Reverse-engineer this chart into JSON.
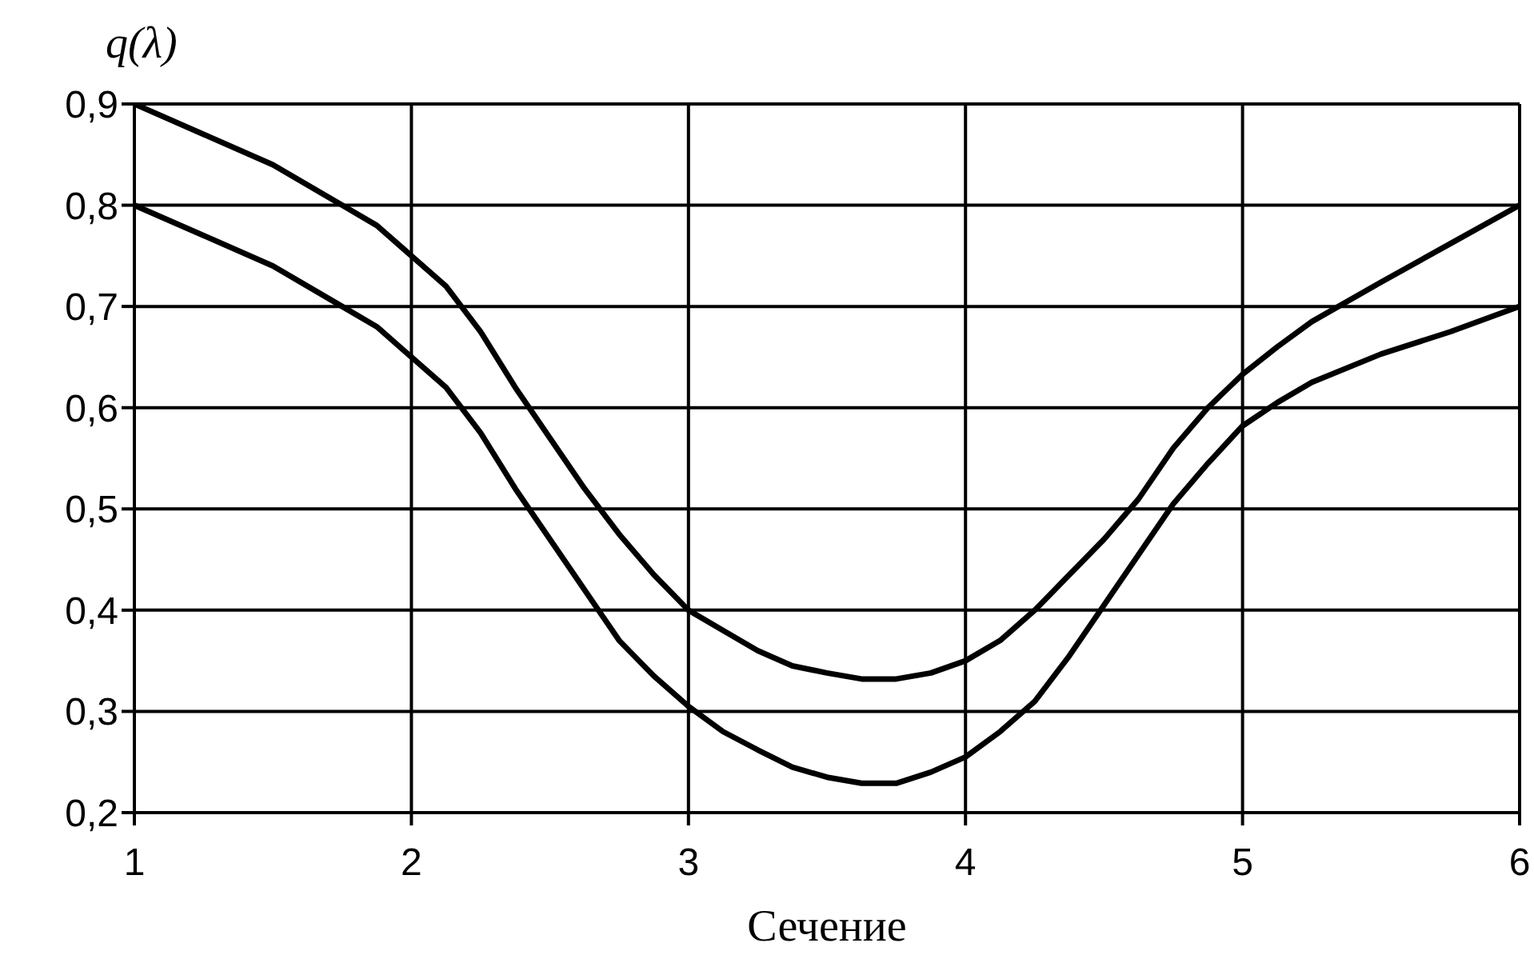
{
  "chart_data": {
    "type": "line",
    "xlabel": "Сечение",
    "ylabel": "q(λ)",
    "xlim": [
      1,
      6
    ],
    "xticks": [
      1,
      2,
      3,
      4,
      5,
      6
    ],
    "ylim": [
      0.2,
      0.9
    ],
    "yticks": [
      {
        "value": 0.2,
        "label": "0,2"
      },
      {
        "value": 0.3,
        "label": "0,3"
      },
      {
        "value": 0.4,
        "label": "0,4"
      },
      {
        "value": 0.5,
        "label": "0,5"
      },
      {
        "value": 0.6,
        "label": "0,6"
      },
      {
        "value": 0.7,
        "label": "0,7"
      },
      {
        "value": 0.8,
        "label": "0,8"
      },
      {
        "value": 0.9,
        "label": "0,9"
      }
    ],
    "grid": true,
    "marker": "none",
    "line_style": "solid",
    "x": [
      1,
      1.25,
      1.5,
      1.75,
      1.875,
      2,
      2.125,
      2.25,
      2.375,
      2.5,
      2.625,
      2.75,
      2.875,
      3,
      3.125,
      3.25,
      3.375,
      3.5,
      3.625,
      3.75,
      3.875,
      4,
      4.125,
      4.25,
      4.375,
      4.5,
      4.625,
      4.75,
      4.875,
      5,
      5.125,
      5.25,
      5.5,
      5.75,
      6
    ],
    "series": [
      {
        "color": "#000000",
        "values": [
          0.9,
          0.87,
          0.84,
          0.8,
          0.78,
          0.75,
          0.72,
          0.675,
          0.62,
          0.57,
          0.52,
          0.475,
          0.435,
          0.4,
          0.38,
          0.36,
          0.345,
          0.338,
          0.332,
          0.332,
          0.338,
          0.35,
          0.37,
          0.4,
          0.435,
          0.47,
          0.51,
          0.56,
          0.6,
          0.633,
          0.66,
          0.685,
          0.724,
          0.762,
          0.8
        ]
      },
      {
        "color": "#000000",
        "values": [
          0.8,
          0.77,
          0.74,
          0.7,
          0.68,
          0.65,
          0.62,
          0.575,
          0.52,
          0.47,
          0.42,
          0.37,
          0.335,
          0.305,
          0.28,
          0.262,
          0.245,
          0.235,
          0.229,
          0.229,
          0.24,
          0.255,
          0.28,
          0.31,
          0.355,
          0.405,
          0.455,
          0.505,
          0.545,
          0.582,
          0.605,
          0.625,
          0.653,
          0.675,
          0.7
        ]
      }
    ]
  }
}
